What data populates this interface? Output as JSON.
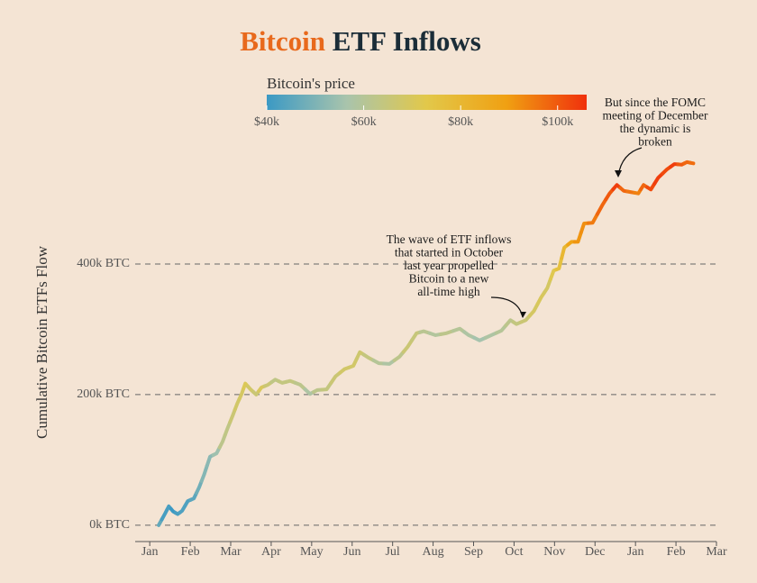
{
  "chart_data": {
    "type": "line",
    "title": [
      "Bitcoin",
      "ETF Inflows"
    ],
    "title_colors": [
      "#e8691c",
      "#1b2d38"
    ],
    "ylabel": "Cumulative Bitcoin ETFs Flow",
    "xticks": [
      {
        "value": 0,
        "label": "Jan"
      },
      {
        "value": 1,
        "label": "Feb"
      },
      {
        "value": 2,
        "label": "Mar"
      },
      {
        "value": 3,
        "label": "Apr"
      },
      {
        "value": 4,
        "label": "May"
      },
      {
        "value": 5,
        "label": "Jun"
      },
      {
        "value": 6,
        "label": "Jul"
      },
      {
        "value": 7,
        "label": "Aug"
      },
      {
        "value": 8,
        "label": "Sep"
      },
      {
        "value": 9,
        "label": "Oct"
      },
      {
        "value": 10,
        "label": "Nov"
      },
      {
        "value": 11,
        "label": "Dec"
      },
      {
        "value": 12,
        "label": "Jan"
      },
      {
        "value": 13,
        "label": "Feb"
      },
      {
        "value": 14,
        "label": "Mar"
      }
    ],
    "xlim": [
      -0.36,
      14.0
    ],
    "ylim": [
      -25000,
      600000
    ],
    "yticks": [
      {
        "value": 0,
        "label": "0k BTC"
      },
      {
        "value": 200000,
        "label": "200k BTC"
      },
      {
        "value": 400000,
        "label": "400k BTC"
      }
    ],
    "grid": true,
    "x": [
      0.22,
      0.38,
      0.47,
      0.58,
      0.69,
      0.8,
      0.94,
      1.09,
      1.22,
      1.34,
      1.49,
      1.65,
      1.8,
      1.92,
      2.05,
      2.16,
      2.27,
      2.36,
      2.49,
      2.63,
      2.76,
      2.92,
      3.1,
      3.27,
      3.47,
      3.72,
      3.96,
      4.14,
      4.37,
      4.59,
      4.81,
      5.03,
      5.19,
      5.39,
      5.66,
      5.92,
      6.17,
      6.37,
      6.59,
      6.77,
      7.06,
      7.33,
      7.66,
      7.88,
      8.15,
      8.44,
      8.69,
      8.91,
      9.06,
      9.29,
      9.49,
      9.67,
      9.82,
      9.98,
      10.11,
      10.24,
      10.42,
      10.58,
      10.73,
      10.94,
      11.18,
      11.36,
      11.54,
      11.71,
      11.89,
      12.07,
      12.2,
      12.38,
      12.56,
      12.78,
      12.96,
      13.14,
      13.27,
      13.43
    ],
    "series": [
      {
        "values": [
          0,
          18000,
          29000,
          21000,
          17000,
          22000,
          37000,
          41000,
          58000,
          77000,
          105000,
          110000,
          128000,
          148000,
          168000,
          186000,
          201000,
          217000,
          208000,
          200000,
          211000,
          215000,
          223000,
          218000,
          221000,
          215000,
          201000,
          207000,
          208000,
          228000,
          239000,
          244000,
          265000,
          257000,
          248000,
          247000,
          258000,
          273000,
          294000,
          297000,
          291000,
          294000,
          301000,
          291000,
          283000,
          291000,
          298000,
          314000,
          308000,
          314000,
          328000,
          349000,
          363000,
          390000,
          393000,
          425000,
          434000,
          434000,
          462000,
          463000,
          490000,
          508000,
          521000,
          512000,
          510000,
          508000,
          521000,
          514000,
          532000,
          545000,
          553000,
          552000,
          556000,
          554000
        ],
        "price": [
          46000,
          42000,
          42000,
          40000,
          42000,
          43000,
          43000,
          45000,
          48000,
          51000,
          52000,
          55000,
          62000,
          63000,
          66000,
          68000,
          69000,
          71000,
          68000,
          66000,
          70000,
          66000,
          63000,
          64000,
          64000,
          62000,
          58000,
          62000,
          64000,
          66000,
          68000,
          68000,
          67000,
          64000,
          60000,
          58000,
          62000,
          66000,
          65000,
          61000,
          59000,
          62000,
          60000,
          58000,
          56000,
          58000,
          60000,
          62000,
          64000,
          66000,
          69000,
          70000,
          69000,
          72000,
          76000,
          80000,
          88000,
          91000,
          92000,
          95000,
          98000,
          100000,
          104000,
          98000,
          96000,
          94000,
          98000,
          102000,
          104000,
          102000,
          104000,
          100000,
          98000,
          97000
        ]
      }
    ],
    "colorbar": {
      "title": "Bitcoin's price",
      "lim": [
        40000,
        106000
      ],
      "ticks": [
        {
          "value": 40000,
          "label": "$40k"
        },
        {
          "value": 60000,
          "label": "$60k"
        },
        {
          "value": 80000,
          "label": "$80k"
        },
        {
          "value": 100000,
          "label": "$100k"
        }
      ],
      "colors": [
        "#3b99c4",
        "#a9c4ac",
        "#e2c84a",
        "#f0a012",
        "#f0300c"
      ]
    },
    "annotations": [
      [
        "The wave of ETF inflows",
        "that started in October",
        "last year propelled",
        "Bitcoin to a new",
        "all-time high"
      ],
      [
        "But since the FOMC",
        "meeting of December",
        "the dynamic is",
        "broken"
      ]
    ]
  }
}
